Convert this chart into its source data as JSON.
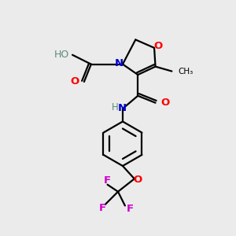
{
  "bg_color": "#ebebeb",
  "atom_colors": {
    "C": "#000000",
    "N": "#0000cc",
    "O": "#ff0000",
    "F": "#cc00cc",
    "H": "#5a8a7a"
  },
  "bond_color": "#000000",
  "bond_width": 1.6,
  "figsize": [
    3.0,
    3.0
  ],
  "dpi": 100
}
